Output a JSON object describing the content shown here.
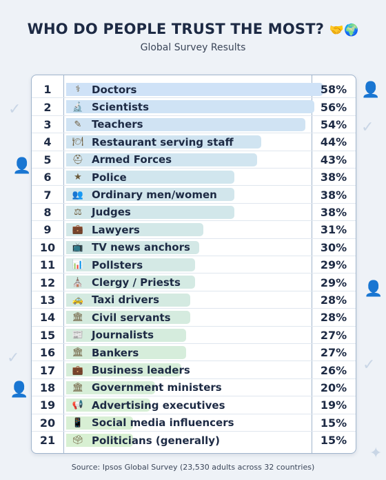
{
  "header": {
    "title": "WHO DO PEOPLE TRUST THE MOST?",
    "title_emoji": "🤝🌍",
    "subtitle": "Global Survey Results"
  },
  "footer": {
    "source": "Source: Ipsos Global Survey (23,530 adults across 32 countries)"
  },
  "colors": {
    "bar_top": "#cfe2f7",
    "bar_bottom": "#d8f0d2",
    "text": "#1d2a44",
    "border": "#9fb4cc"
  },
  "chart_data": {
    "type": "bar",
    "orientation": "horizontal",
    "title": "WHO DO PEOPLE TRUST THE MOST?",
    "subtitle": "Global Survey Results",
    "ranks": [
      "1",
      "2",
      "3",
      "4",
      "5",
      "6",
      "7",
      "8",
      "9",
      "10",
      "11",
      "12",
      "13",
      "14",
      "15",
      "16",
      "17",
      "18",
      "19",
      "20",
      "21"
    ],
    "categories": [
      "Doctors",
      "Scientists",
      "Teachers",
      "Restaurant serving staff",
      "Armed Forces",
      "Police",
      "Ordinary men/women",
      "Judges",
      "Lawyers",
      "TV news anchors",
      "Pollsters",
      "Clergy / Priests",
      "Taxi drivers",
      "Civil servants",
      "Journalists",
      "Bankers",
      "Business leaders",
      "Government ministers",
      "Advertising executives",
      "Social media influencers",
      "Politicians (generally)"
    ],
    "icons": [
      "doctor-icon",
      "microscope-icon",
      "teacher-icon",
      "plate-icon",
      "helmet-icon",
      "police-officer-icon",
      "people-icon",
      "scales-icon",
      "briefcase-icon",
      "television-icon",
      "bar-chart-icon",
      "church-icon",
      "taxi-icon",
      "classical-building-icon",
      "newspaper-icon",
      "classical-building-icon",
      "briefcase-icon",
      "classical-building-icon",
      "megaphone-icon",
      "mobile-phone-icon",
      "ballot-box-icon"
    ],
    "values": [
      58,
      56,
      54,
      44,
      43,
      38,
      38,
      38,
      31,
      30,
      29,
      29,
      28,
      28,
      27,
      27,
      26,
      20,
      19,
      15,
      15
    ],
    "value_labels": [
      "58%",
      "56%",
      "54%",
      "44%",
      "43%",
      "38%",
      "38%",
      "38%",
      "31%",
      "30%",
      "29%",
      "29%",
      "28%",
      "28%",
      "27%",
      "27%",
      "26%",
      "20%",
      "19%",
      "15%",
      "15%"
    ],
    "unit": "%",
    "xlim": [
      0,
      60
    ],
    "grid": false,
    "legend": "none"
  }
}
